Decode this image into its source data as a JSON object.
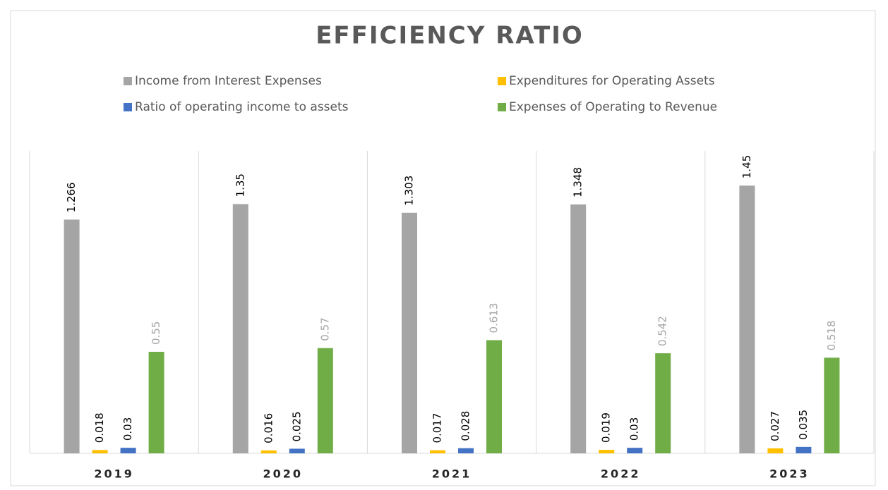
{
  "chart_data": {
    "type": "bar",
    "title": "EFFICIENCY RATIO",
    "categories": [
      "2019",
      "2020",
      "2021",
      "2022",
      "2023"
    ],
    "series": [
      {
        "name": "Income from Interest Expenses",
        "color": "#a5a5a5",
        "label_color": "#000000",
        "values": [
          1.266,
          1.35,
          1.303,
          1.348,
          1.45
        ]
      },
      {
        "name": "Expenditures for Operating Assets",
        "color": "#ffc000",
        "label_color": "#000000",
        "values": [
          0.018,
          0.016,
          0.017,
          0.019,
          0.027
        ]
      },
      {
        "name": "Ratio of operating income to assets",
        "color": "#4472c4",
        "label_color": "#000000",
        "values": [
          0.03,
          0.025,
          0.028,
          0.03,
          0.035
        ]
      },
      {
        "name": "Expenses of Operating to Revenue",
        "color": "#70ad47",
        "label_color": "#a5a5a5",
        "values": [
          0.55,
          0.57,
          0.613,
          0.542,
          0.518
        ]
      }
    ],
    "ylim": [
      0,
      1.6
    ],
    "legend": "top"
  }
}
